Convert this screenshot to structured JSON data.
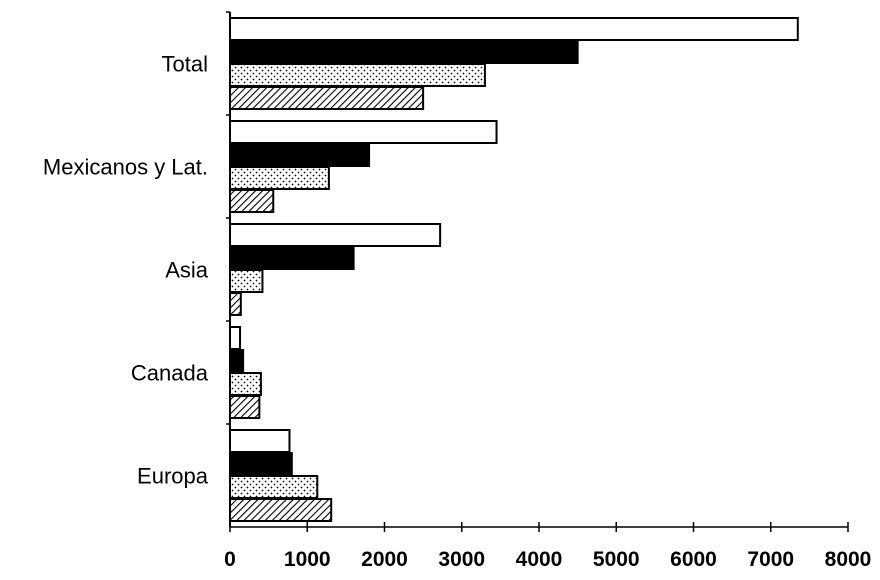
{
  "chart_data": {
    "type": "bar",
    "orientation": "horizontal",
    "categories": [
      "Total",
      "Mexicanos y Lat.",
      "Asia",
      "Canada",
      "Europa"
    ],
    "series": [
      {
        "pattern": "white",
        "values": [
          7350,
          3450,
          2720,
          130,
          770
        ]
      },
      {
        "pattern": "black",
        "values": [
          4500,
          1800,
          1600,
          170,
          800
        ]
      },
      {
        "pattern": "dotted",
        "values": [
          3300,
          1280,
          420,
          400,
          1130
        ]
      },
      {
        "pattern": "hatched",
        "values": [
          2500,
          560,
          140,
          380,
          1310
        ]
      }
    ],
    "xlim": [
      0,
      8000
    ],
    "xticks": [
      "0",
      "1000",
      "2000",
      "3000",
      "4000",
      "5000",
      "6000",
      "7000",
      "8000"
    ],
    "grid": false,
    "legend": "none"
  }
}
